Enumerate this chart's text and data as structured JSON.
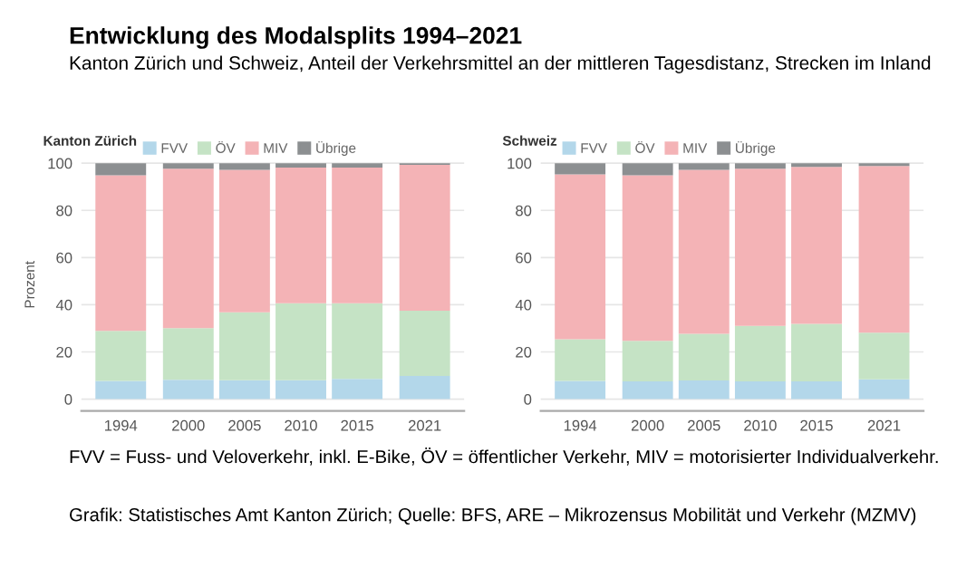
{
  "chart_data": [
    {
      "type": "bar",
      "stacked": true,
      "title": "Entwicklung des Modalsplits 1994–2021",
      "subtitle": "Kanton Zürich und Schweiz, Anteil der Verkehrsmittel an der mittleren Tagesdistanz, Strecken im Inland",
      "legend_title": "Kanton Zürich",
      "ylabel": "Prozent",
      "legend": "top left",
      "grid": "y",
      "x": [
        1994,
        2000,
        2005,
        2010,
        2015,
        2021
      ],
      "xlim": [
        1990.5,
        2024.5
      ],
      "xticks": [
        1994,
        2000,
        2005,
        2010,
        2015,
        2021
      ],
      "ylim": [
        -5,
        102
      ],
      "yticks": [
        0,
        20,
        40,
        60,
        80,
        100
      ],
      "series": [
        {
          "name": "FVV",
          "color": "#b3d7ea",
          "values": [
            7.7,
            8.2,
            8.0,
            8.0,
            8.6,
            9.8
          ]
        },
        {
          "name": "ÖV",
          "color": "#c5e3c5",
          "values": [
            21.2,
            21.9,
            28.8,
            32.6,
            32.0,
            27.7
          ]
        },
        {
          "name": "MIV",
          "color": "#f4b3b6",
          "values": [
            66.0,
            67.6,
            60.4,
            57.5,
            57.5,
            61.8
          ]
        },
        {
          "name": "Übrige",
          "color": "#8c8f91",
          "values": [
            5.1,
            2.3,
            2.8,
            1.9,
            1.9,
            0.7
          ]
        }
      ],
      "annotations": [
        "FVV = Fuss- und Veloverkehr, inkl. E-Bike, ÖV = öffentlicher Verkehr, MIV = motorisierter Individualverkehr.",
        "Grafik: Statistisches Amt Kanton Zürich; Quelle: BFS, ARE – Mikrozensus Mobilität und Verkehr (MZMV)"
      ]
    },
    {
      "type": "bar",
      "stacked": true,
      "legend_title": "Schweiz",
      "legend": "top left",
      "grid": "y",
      "x": [
        1994,
        2000,
        2005,
        2010,
        2015,
        2021
      ],
      "xlim": [
        1990.5,
        2024.5
      ],
      "xticks": [
        1994,
        2000,
        2005,
        2010,
        2015,
        2021
      ],
      "ylim": [
        -5,
        102
      ],
      "yticks": [
        0,
        20,
        40,
        60,
        80,
        100
      ],
      "series": [
        {
          "name": "FVV",
          "color": "#b3d7ea",
          "values": [
            7.7,
            7.5,
            7.9,
            7.5,
            7.5,
            8.4
          ]
        },
        {
          "name": "ÖV",
          "color": "#c5e3c5",
          "values": [
            17.7,
            17.2,
            19.8,
            23.5,
            24.4,
            19.8
          ]
        },
        {
          "name": "MIV",
          "color": "#f4b3b6",
          "values": [
            69.9,
            70.2,
            69.5,
            66.7,
            66.5,
            70.6
          ]
        },
        {
          "name": "Übrige",
          "color": "#8c8f91",
          "values": [
            4.7,
            5.1,
            2.8,
            2.3,
            1.6,
            1.2
          ]
        }
      ]
    }
  ]
}
